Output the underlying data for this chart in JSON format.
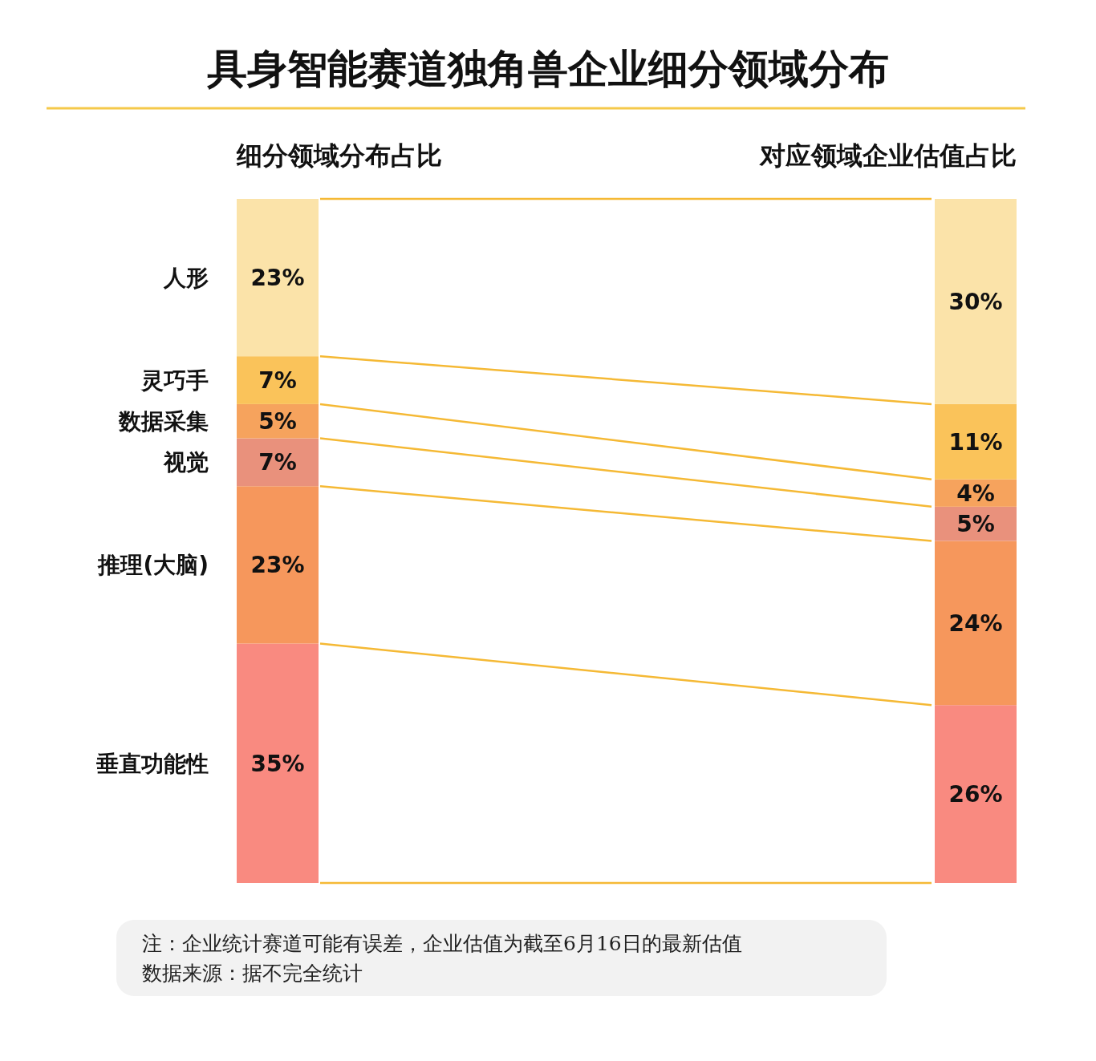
{
  "chart_data": {
    "type": "bar",
    "stacked": true,
    "title": "具身智能赛道独角兽企业细分领域分布",
    "categories": [
      "细分领域分布占比",
      "对应领域企业估值占比"
    ],
    "series": [
      {
        "name": "垂直功能性",
        "color": "#f98a80",
        "values": [
          35,
          26
        ],
        "value_labels": [
          "35%",
          "26%"
        ]
      },
      {
        "name": "推理(大脑)",
        "color": "#f6975c",
        "values": [
          23,
          24
        ],
        "value_labels": [
          "23%",
          "24%"
        ]
      },
      {
        "name": "视觉",
        "color": "#e9917c",
        "values": [
          7,
          5
        ],
        "value_labels": [
          "7%",
          "5%"
        ]
      },
      {
        "name": "数据采集",
        "color": "#f6a35d",
        "values": [
          5,
          4
        ],
        "value_labels": [
          "5%",
          "4%"
        ]
      },
      {
        "name": "灵巧手",
        "color": "#fac35a",
        "values": [
          7,
          11
        ],
        "value_labels": [
          "7%",
          "11%"
        ]
      },
      {
        "name": "人形",
        "color": "#fbe3a9",
        "values": [
          23,
          30
        ],
        "value_labels": [
          "23%",
          "30%"
        ]
      }
    ],
    "annotations": [
      "注：企业统计赛道可能有误差，企业估值为截至6月16日的最新估值",
      "数据来源：据不完全统计"
    ]
  }
}
